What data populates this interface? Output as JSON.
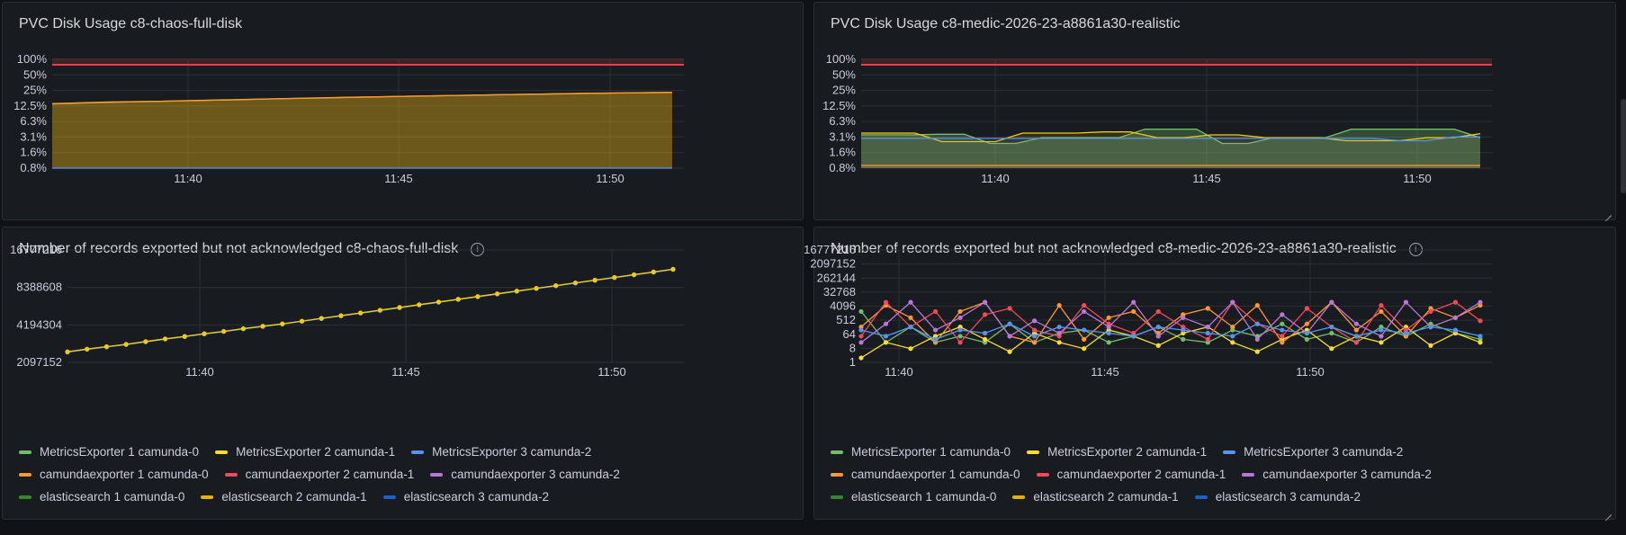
{
  "colors": {
    "threshold": "#e0434f",
    "bg": "#181b1f",
    "grid": "#2c3035"
  },
  "panels": [
    {
      "title": "PVC Disk Usage c8-chaos-full-disk",
      "has_info": false,
      "chart_data": {
        "type": "area",
        "ylabels": [
          "100%",
          "50%",
          "25%",
          "12.5%",
          "6.3%",
          "3.1%",
          "1.6%",
          "0.8%"
        ],
        "xlabels": [
          "11:40",
          "11:45",
          "11:50"
        ],
        "threshold": "100%",
        "series": [
          {
            "color": "#f2cc0c",
            "values": [
              14,
              14.5,
              15,
              15.3,
              15.6,
              16,
              16.4,
              16.8,
              17.3,
              17.7,
              18.1,
              18.6,
              19,
              19.4,
              19.8,
              20.2,
              20.6,
              21,
              21.4,
              21.8,
              22.2,
              22.5,
              22.8,
              23.1
            ]
          },
          {
            "color": "#ff9830",
            "values": [
              13.8,
              14.3,
              14.8,
              15.2,
              15.5,
              15.9,
              16.3,
              16.7,
              17.2,
              17.6,
              18,
              18.5,
              18.9,
              19.3,
              19.7,
              20.1,
              20.5,
              20.9,
              21.3,
              21.7,
              22.1,
              22.4,
              22.7,
              23
            ]
          },
          {
            "color": "#5794f2",
            "values": [
              0.8,
              0.8,
              0.8,
              0.8,
              0.8,
              0.8,
              0.8,
              0.8,
              0.8,
              0.8,
              0.8,
              0.8,
              0.8,
              0.8,
              0.8,
              0.8,
              0.8,
              0.8,
              0.8,
              0.8,
              0.8,
              0.8,
              0.8,
              0.8
            ]
          }
        ]
      }
    },
    {
      "title": "PVC Disk Usage c8-medic-2026-23-a8861a30-realistic",
      "has_info": false,
      "chart_data": {
        "type": "area",
        "ylabels": [
          "100%",
          "50%",
          "25%",
          "12.5%",
          "6.3%",
          "3.1%",
          "1.6%",
          "0.8%"
        ],
        "xlabels": [
          "11:40",
          "11:45",
          "11:50"
        ],
        "threshold": "100%",
        "series": [
          {
            "color": "#73bf69",
            "values": [
              3.5,
              3.5,
              3.5,
              3.6,
              3.6,
              2.4,
              2.4,
              3.1,
              3.1,
              3.1,
              3.1,
              4.5,
              4.5,
              4.5,
              2.4,
              2.4,
              3.1,
              3.1,
              3.1,
              4.5,
              4.5,
              4.5,
              4.5,
              4.5,
              3.1
            ]
          },
          {
            "color": "#f2cc0c",
            "values": [
              3.8,
              3.8,
              3.8,
              2.6,
              2.6,
              2.6,
              3.8,
              3.8,
              3.8,
              4,
              4,
              3.1,
              3.1,
              3.5,
              3.5,
              3.1,
              3.1,
              3.1,
              2.7,
              2.7,
              2.7,
              3.1,
              3.1,
              3.7
            ]
          },
          {
            "color": "#5794f2",
            "values": [
              3,
              3,
              3,
              3,
              3,
              3,
              3,
              3,
              3,
              3,
              3,
              3,
              3,
              3,
              3,
              3,
              3,
              3,
              3,
              3,
              2.7,
              2.7,
              3.2,
              3.2
            ]
          },
          {
            "color": "#ff9830",
            "values": [
              0.9,
              0.9,
              0.9,
              0.9,
              0.9,
              0.9,
              0.9,
              0.9,
              0.9,
              0.9,
              0.9,
              0.9,
              0.9,
              0.9,
              0.9,
              0.9,
              0.9,
              0.9,
              0.9,
              0.9,
              0.9,
              0.9,
              0.9,
              0.9
            ]
          }
        ]
      }
    },
    {
      "title": "Number of records exported but not acknowledged c8-chaos-full-disk",
      "has_info": true,
      "chart_data": {
        "type": "line",
        "ylabels": [
          "16777216",
          "8388608",
          "4194304",
          "2097152"
        ],
        "xlabels": [
          "11:40",
          "11:45",
          "11:50"
        ],
        "series": [
          {
            "color": "#5794f2",
            "values": [
              2.3,
              2.38,
              2.45,
              2.52,
              2.6,
              2.68,
              2.75,
              2.83,
              2.9,
              2.98,
              3.05,
              3.12,
              3.2,
              3.28,
              3.36,
              3.44,
              3.52,
              3.6,
              3.68,
              3.76,
              3.84,
              3.92,
              4,
              4.08,
              4.16,
              4.24,
              4.32,
              4.4,
              4.48,
              4.56,
              4.64,
              4.72
            ]
          },
          {
            "color": "#f2cc0c",
            "values": [
              2.31,
              2.39,
              2.46,
              2.53,
              2.61,
              2.69,
              2.76,
              2.84,
              2.91,
              2.99,
              3.06,
              3.13,
              3.21,
              3.29,
              3.37,
              3.45,
              3.53,
              3.61,
              3.69,
              3.77,
              3.85,
              3.93,
              4.01,
              4.09,
              4.17,
              4.25,
              4.33,
              4.41,
              4.49,
              4.57,
              4.65,
              4.73
            ]
          }
        ]
      },
      "legend": [
        [
          {
            "label": "MetricsExporter 1 camunda-0",
            "color": "#73bf69"
          },
          {
            "label": "MetricsExporter 2 camunda-1",
            "color": "#fade2a"
          },
          {
            "label": "MetricsExporter 3 camunda-2",
            "color": "#5794f2"
          }
        ],
        [
          {
            "label": "camundaexporter 1 camunda-0",
            "color": "#ff9830"
          },
          {
            "label": "camundaexporter 2 camunda-1",
            "color": "#f2495c"
          },
          {
            "label": "camundaexporter 3 camunda-2",
            "color": "#b877d9"
          }
        ],
        [
          {
            "label": "elasticsearch 1 camunda-0",
            "color": "#37872d"
          },
          {
            "label": "elasticsearch 2 camunda-1",
            "color": "#e0b400"
          },
          {
            "label": "elasticsearch 3 camunda-2",
            "color": "#1f60c4"
          }
        ]
      ]
    },
    {
      "title": "Number of records exported but not acknowledged c8-medic-2026-23-a8861a30-realistic",
      "has_info": true,
      "chart_data": {
        "type": "line",
        "ylabels": [
          "16777216",
          "2097152",
          "262144",
          "32768",
          "4096",
          "512",
          "64",
          "8",
          "1"
        ],
        "xlabels": [
          "11:40",
          "11:45",
          "11:50"
        ],
        "series": [
          {
            "color": "#73bf69",
            "values": [
              4,
              3,
              3.5,
              3,
              3.2,
              3,
              3.6,
              3,
              3.3,
              3.4,
              3,
              3.2,
              3.5,
              3.1,
              3,
              3.4,
              3.2,
              3.6,
              3.1,
              3.3,
              3,
              3.5,
              3.2,
              3.6,
              3.3,
              3.1
            ]
          },
          {
            "color": "#fade2a",
            "values": [
              2.5,
              3,
              2.8,
              3.2,
              3.5,
              3.1,
              2.7,
              3.3,
              3,
              2.8,
              3.4,
              3.2,
              2.9,
              3.3,
              3.5,
              3,
              2.7,
              3.1,
              3.4,
              2.8,
              3.2,
              3,
              3.5,
              2.9,
              3.3,
              3
            ]
          },
          {
            "color": "#ff9830",
            "values": [
              3.5,
              4.2,
              3.8,
              3,
              4,
              4.3,
              3.2,
              3,
              4.2,
              3.1,
              3.8,
              4,
              3.3,
              3.9,
              4.1,
              3.5,
              4.2,
              3,
              3.6,
              4.3,
              3.4,
              4,
              3.2,
              4.1,
              3.8,
              4.2
            ]
          },
          {
            "color": "#f2495c",
            "values": [
              3.2,
              4.3,
              3.5,
              4,
              3,
              3.9,
              4.1,
              3.4,
              3.2,
              4.2,
              3.6,
              3.3,
              4,
              3.5,
              3.1,
              4.3,
              3.6,
              3.2,
              4.1,
              3.5,
              3,
              4.2,
              3.4,
              4,
              4.3,
              3.7
            ]
          },
          {
            "color": "#b877d9",
            "values": [
              3,
              3.6,
              4.3,
              3.4,
              3.8,
              4.3,
              3.2,
              3.7,
              3.3,
              4,
              3.5,
              4.3,
              3.2,
              3.8,
              3.5,
              4.3,
              3.1,
              3.9,
              3.3,
              4.3,
              3.6,
              3.2,
              4.3,
              3.5,
              3.8,
              4.3
            ]
          },
          {
            "color": "#5794f2",
            "values": [
              3.4,
              3.2,
              3.5,
              3.1,
              3.4,
              3.3,
              3.6,
              3.2,
              3.5,
              3.4,
              3.3,
              3.2,
              3.5,
              3.4,
              3.3,
              3.2,
              3.6,
              3.4,
              3.3,
              3.5,
              3.2,
              3.4,
              3.3,
              3.5,
              3.4,
              3.2
            ]
          }
        ]
      },
      "legend": [
        [
          {
            "label": "MetricsExporter 1 camunda-0",
            "color": "#73bf69"
          },
          {
            "label": "MetricsExporter 2 camunda-1",
            "color": "#fade2a"
          },
          {
            "label": "MetricsExporter 3 camunda-2",
            "color": "#5794f2"
          }
        ],
        [
          {
            "label": "camundaexporter 1 camunda-0",
            "color": "#ff9830"
          },
          {
            "label": "camundaexporter 2 camunda-1",
            "color": "#f2495c"
          },
          {
            "label": "camundaexporter 3 camunda-2",
            "color": "#b877d9"
          }
        ],
        [
          {
            "label": "elasticsearch 1 camunda-0",
            "color": "#37872d"
          },
          {
            "label": "elasticsearch 2 camunda-1",
            "color": "#e0b400"
          },
          {
            "label": "elasticsearch 3 camunda-2",
            "color": "#1f60c4"
          }
        ]
      ]
    }
  ]
}
